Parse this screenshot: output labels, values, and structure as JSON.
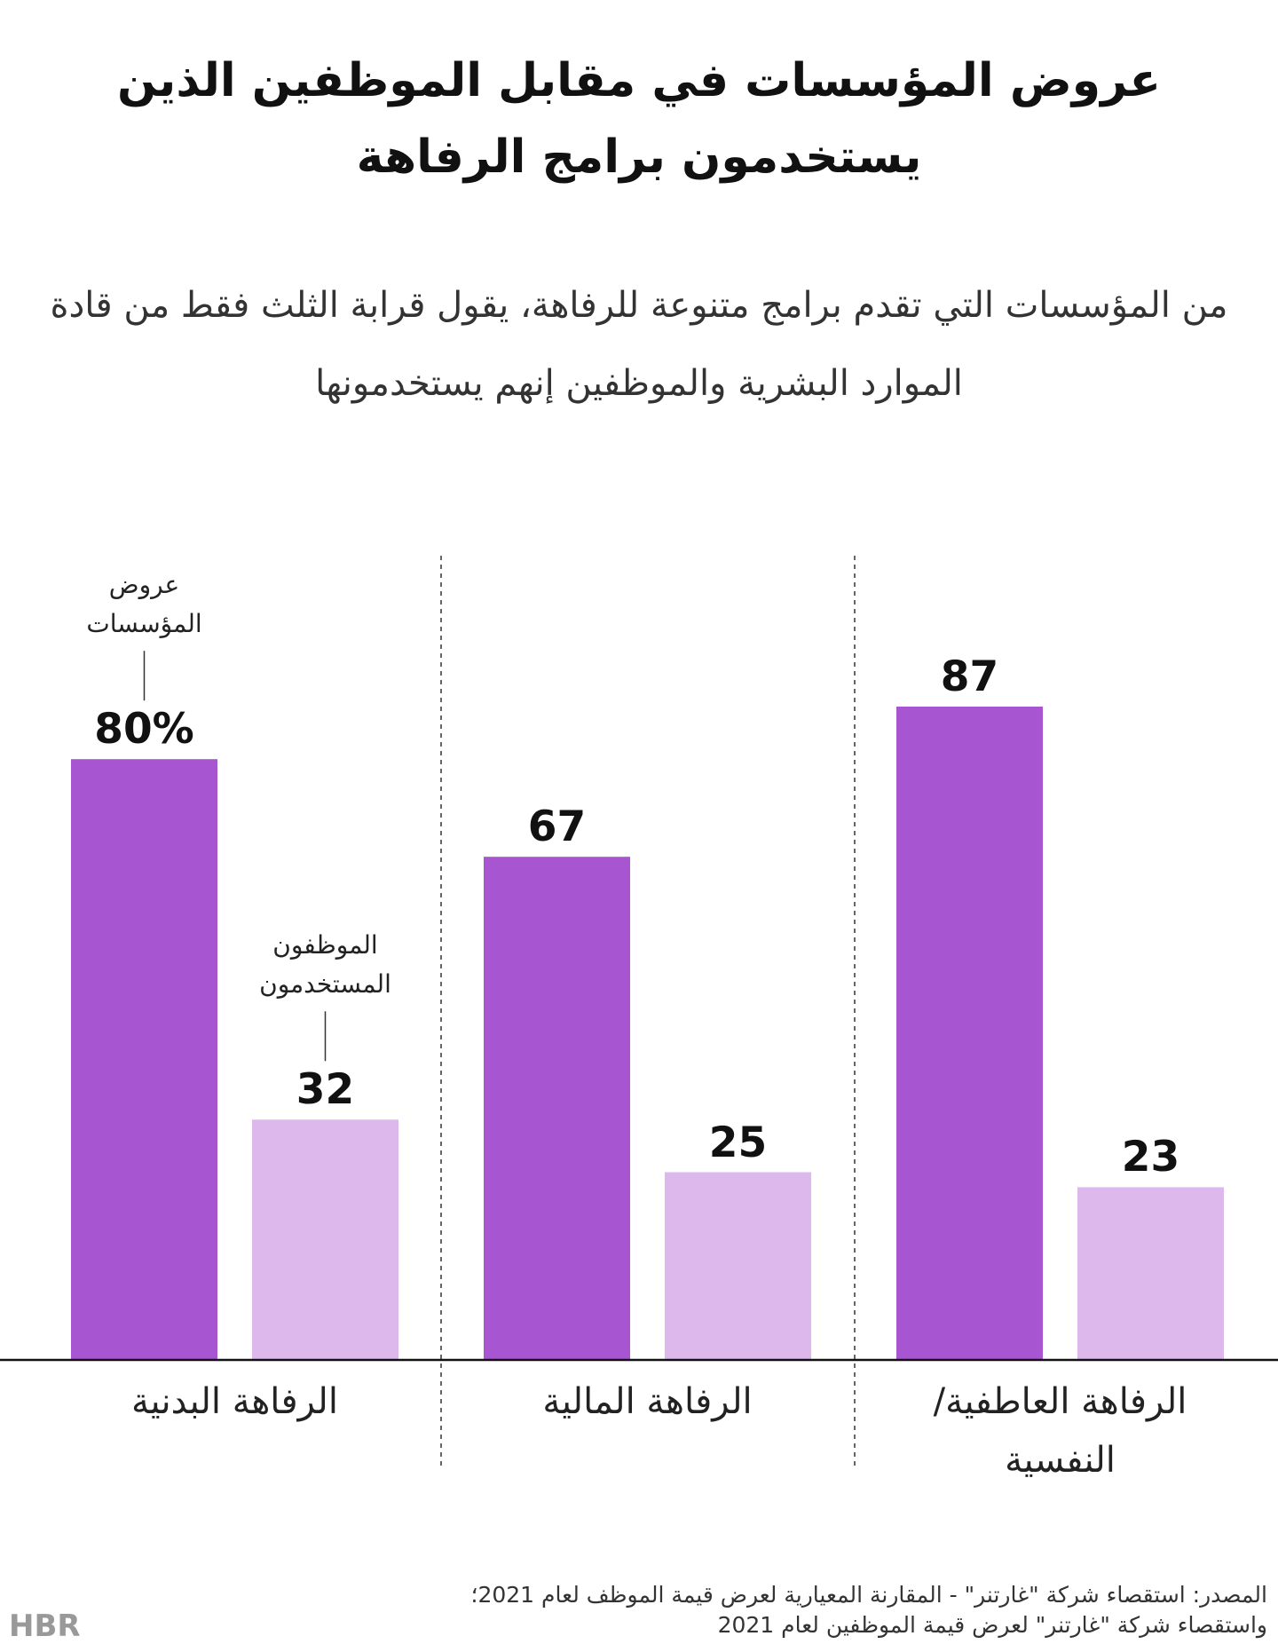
{
  "chart_data": {
    "type": "bar",
    "title": "عروض المؤسسات في مقابل الموظفين الذين يستخدمون برامج الرفاهة",
    "subtitle": "من المؤسسات التي تقدم برامج متنوعة للرفاهة، يقول قرابة الثلث فقط من قادة الموارد البشرية والموظفين إنهم يستخدمونها",
    "categories": [
      "الرفاهة العاطفية/النفسية",
      "الرفاهة المالية",
      "الرفاهة البدنية"
    ],
    "series": [
      {
        "name": "عروض المؤسسات",
        "color": "#a855d1",
        "values": [
          87,
          67,
          80
        ],
        "value_labels": [
          "87",
          "67",
          "80%"
        ]
      },
      {
        "name": "الموظفون المستخدمون",
        "color": "#dcb8ec",
        "values": [
          23,
          25,
          32
        ],
        "value_labels": [
          "23",
          "25",
          "32"
        ]
      }
    ],
    "source": "المصدر: استقصاء شركة \"غارتنر\" - المقارنة المعيارية لعرض قيمة الموظف لعام 2021؛ واستقصاء شركة \"غارتنر\" لعرض قيمة الموظفين لعام 2021",
    "logo": "HBR"
  }
}
